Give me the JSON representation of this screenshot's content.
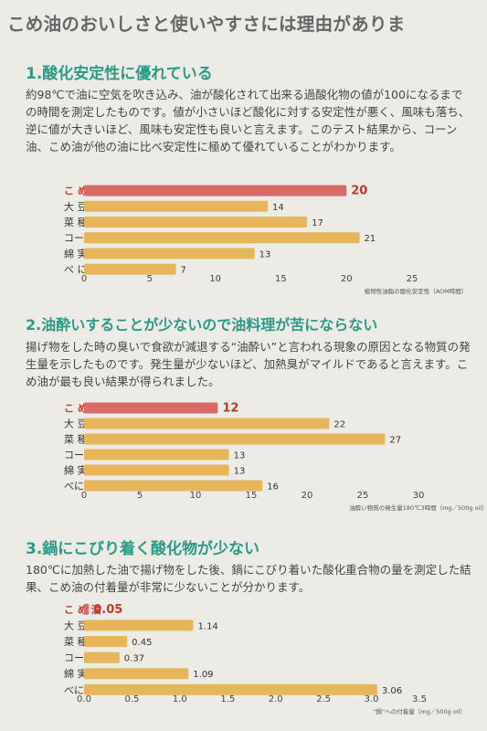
{
  "headline": "こめ油のおいしさと使いやすさには理由がありま",
  "sections": [
    {
      "title": "1.酸化安定性に優れている",
      "body": "約98℃で油に空気を吹き込み、油が酸化されて出来る過酸化物の値が100になるまでの時間を測定したものです。値が小さいほど酸化に対する安定性が悪く、風味も落ち、逆に値が大きいほど、風味も安定性も良いと言えます。このテスト結果から、コーン油、こめ油が他の油に比べ安定性に極めて優れていることがわかります。"
    },
    {
      "title": "2.油酔いすることが少ないので油料理が苦にならない",
      "body": "揚げ物をした時の臭いで食欲が減退する“油酔い”と言われる現象の原因となる物質の発生量を示したものです。発生量が少ないほど、加熱臭がマイルドであると言えます。こめ油が最も良い結果が得られました。"
    },
    {
      "title": "3.鍋にこびり着く酸化物が少ない",
      "body": "180℃に加熱した油で揚げ物をした後、鍋にこびり着いた酸化重合物の量を測定した結果、こめ油の付着量が非常に少ないことが分かります。"
    }
  ],
  "chart_data": [
    {
      "type": "bar",
      "orientation": "horizontal",
      "categories": [
        "こ め 油",
        "大 豆 油",
        "菜 種 油",
        "コーン油",
        "綿 実 油",
        "べ に 油"
      ],
      "values": [
        20,
        14,
        17,
        21,
        13,
        7
      ],
      "value_labels": [
        "20",
        "14",
        "17",
        "21",
        "13",
        "7"
      ],
      "highlight_index": 0,
      "xlim": [
        0,
        25
      ],
      "ticks": [
        "0",
        "5",
        "10",
        "15",
        "20",
        "25"
      ],
      "xlabel": "植物性油脂の酸化安定性（AOM時間）",
      "colors": {
        "bar": "#e8b65a",
        "highlight": "#d86a6a",
        "highlight_label": "#c0392b"
      }
    },
    {
      "type": "bar",
      "orientation": "horizontal",
      "categories": [
        "こ め 油",
        "大 豆 油",
        "菜 種 油",
        "コーン油",
        "綿 実 油",
        "べに花油"
      ],
      "values": [
        12,
        22,
        27,
        13,
        13,
        16
      ],
      "value_labels": [
        "12",
        "22",
        "27",
        "13",
        "13",
        "16"
      ],
      "highlight_index": 0,
      "xlim": [
        0,
        30
      ],
      "ticks": [
        "0",
        "5",
        "10",
        "15",
        "20",
        "25",
        "30"
      ],
      "xlabel": "油酔い物質の発生量180℃3時間（mg／500g oil）",
      "colors": {
        "bar": "#e8b65a",
        "highlight": "#d86a6a",
        "highlight_label": "#c0392b"
      }
    },
    {
      "type": "bar",
      "orientation": "horizontal",
      "categories": [
        "こ め 油",
        "大 豆 油",
        "菜 種 油",
        "コーン油",
        "綿 実 油",
        "べに花油"
      ],
      "values": [
        0.05,
        1.14,
        0.45,
        0.37,
        1.09,
        3.06
      ],
      "value_labels": [
        "0.05",
        "1.14",
        "0.45",
        "0.37",
        "1.09",
        "3.06"
      ],
      "highlight_index": 0,
      "xlim": [
        0,
        3.5
      ],
      "ticks": [
        "0.0",
        "0.5",
        "1.0",
        "1.5",
        "2.0",
        "2.5",
        "3.0",
        "3.5"
      ],
      "xlabel": "“鍋”への付着量（mg／500g oil）",
      "colors": {
        "bar": "#e8b65a",
        "highlight": "#d86a6a",
        "highlight_label": "#c0392b"
      }
    }
  ]
}
